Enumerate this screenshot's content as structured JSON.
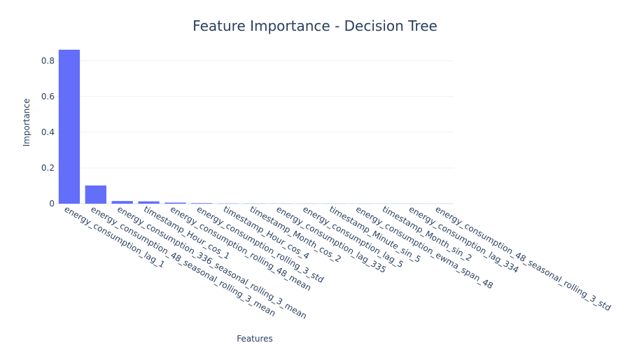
{
  "chart_data": {
    "type": "bar",
    "title": "Feature Importance - Decision Tree",
    "xlabel": "Features",
    "ylabel": "Importance",
    "categories": [
      "energy_consumption_lag_1",
      "energy_consumption_48_seasonal_rolling_3_mean",
      "energy_consumption_336_seasonal_rolling_3_mean",
      "timestamp_Hour_cos_1",
      "energy_consumption_rolling_48_mean",
      "energy_consumption_rolling_3_std",
      "timestamp_Hour_cos_4",
      "timestamp_Month_cos_2",
      "energy_consumption_lag_335",
      "energy_consumption_lag_5",
      "timestamp_Minute_sin_5",
      "energy_consumption_ewma_span_48",
      "timestamp_Month_sin_2",
      "energy_consumption_lag_334",
      "energy_consumption_48_seasonal_rolling_3_std"
    ],
    "values": [
      0.862,
      0.102,
      0.015,
      0.013,
      0.006,
      0.003,
      0.001,
      0.0008,
      0.0006,
      0.0005,
      0.0004,
      0.0003,
      0.0002,
      0.0002,
      0.0001
    ],
    "ylim": [
      0,
      0.862
    ],
    "yticks": [
      0,
      0.2,
      0.4,
      0.6,
      0.8
    ],
    "ytick_labels": [
      "0",
      "0.2",
      "0.4",
      "0.6",
      "0.8"
    ],
    "grid": true,
    "bar_color": "#636efa",
    "grid_color": "#ebf0f8",
    "text_color": "#2a3f5f"
  }
}
